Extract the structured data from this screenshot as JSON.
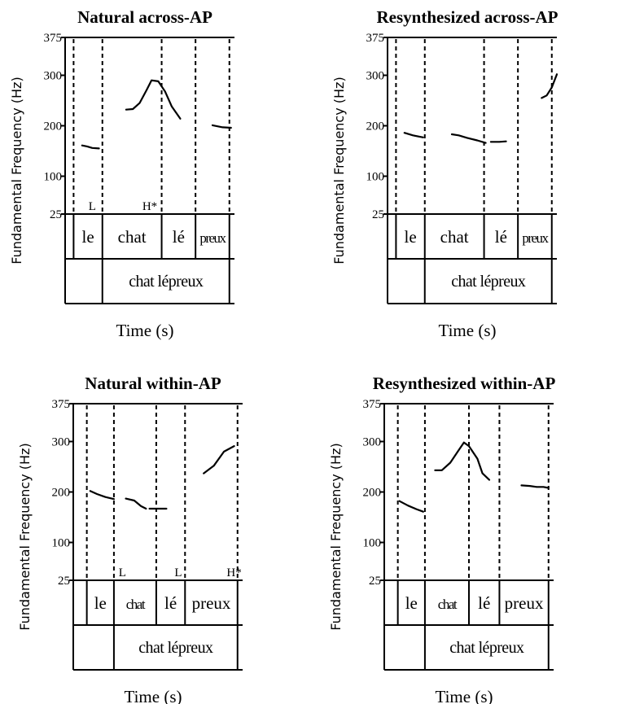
{
  "chart_data": [
    {
      "type": "line",
      "title": "Natural across-AP",
      "ylabel": "Fundamental Frequency (Hz)",
      "xlabel": "Time (s)",
      "yticks": [
        25,
        100,
        200,
        300,
        375
      ],
      "ylim": [
        25,
        375
      ],
      "xlim": [
        0,
        1
      ],
      "tier_bounds": [
        0.05,
        0.22,
        0.57,
        0.77,
        0.97
      ],
      "words": [
        "le",
        "chat",
        "lé",
        "preux"
      ],
      "phrase": "chat lépreux",
      "tones": [
        {
          "label": "L",
          "x": 0.16
        },
        {
          "label": "H*",
          "x": 0.5
        }
      ],
      "series": [
        {
          "values": [
            [
              0.1,
              161
            ],
            [
              0.13,
              159
            ],
            [
              0.16,
              156
            ],
            [
              0.2,
              155
            ]
          ]
        },
        {
          "values": [
            [
              0.36,
              232
            ],
            [
              0.4,
              233
            ],
            [
              0.44,
              245
            ],
            [
              0.48,
              270
            ],
            [
              0.51,
              290
            ],
            [
              0.55,
              288
            ],
            [
              0.59,
              268
            ],
            [
              0.63,
              238
            ],
            [
              0.68,
              214
            ]
          ]
        },
        {
          "values": [
            [
              0.87,
              201
            ],
            [
              0.93,
              197
            ],
            [
              0.98,
              196
            ]
          ]
        }
      ]
    },
    {
      "type": "line",
      "title": "Resynthesized across-AP",
      "ylabel": "Fundamental Frequency (Hz)",
      "xlabel": "Time (s)",
      "yticks": [
        25,
        100,
        200,
        300,
        375
      ],
      "ylim": [
        25,
        375
      ],
      "xlim": [
        0,
        1
      ],
      "tier_bounds": [
        0.05,
        0.22,
        0.57,
        0.77,
        0.97
      ],
      "words": [
        "le",
        "chat",
        "lé",
        "preux"
      ],
      "phrase": "chat lépreux",
      "tones": [],
      "series": [
        {
          "values": [
            [
              0.1,
              186
            ],
            [
              0.15,
              181
            ],
            [
              0.21,
              177
            ]
          ]
        },
        {
          "values": [
            [
              0.38,
              183
            ],
            [
              0.42,
              181
            ],
            [
              0.47,
              176
            ],
            [
              0.53,
              171
            ],
            [
              0.58,
              166
            ]
          ]
        },
        {
          "values": [
            [
              0.61,
              168
            ],
            [
              0.66,
              168
            ],
            [
              0.7,
              169
            ]
          ]
        },
        {
          "values": [
            [
              0.91,
              255
            ],
            [
              0.94,
              260
            ],
            [
              0.97,
              276
            ],
            [
              1.0,
              302
            ]
          ]
        }
      ]
    },
    {
      "type": "line",
      "title": "Natural within-AP",
      "ylabel": "Fundamental Frequency (Hz)",
      "xlabel": "Time (s)",
      "yticks": [
        25,
        100,
        200,
        300,
        375
      ],
      "ylim": [
        25,
        375
      ],
      "xlim": [
        0,
        1
      ],
      "tier_bounds": [
        0.08,
        0.24,
        0.49,
        0.66,
        0.97
      ],
      "words": [
        "le",
        "chat",
        "lé",
        "preux"
      ],
      "phrase": "chat lépreux",
      "tones": [
        {
          "label": "L",
          "x": 0.29
        },
        {
          "label": "L",
          "x": 0.62
        },
        {
          "label": "H*",
          "x": 0.95
        }
      ],
      "series": [
        {
          "values": [
            [
              0.1,
              202
            ],
            [
              0.14,
              196
            ],
            [
              0.19,
              190
            ],
            [
              0.24,
              186
            ]
          ]
        },
        {
          "values": [
            [
              0.31,
              187
            ],
            [
              0.36,
              183
            ],
            [
              0.4,
              172
            ],
            [
              0.43,
              167
            ]
          ]
        },
        {
          "values": [
            [
              0.45,
              167
            ],
            [
              0.5,
              167
            ],
            [
              0.55,
              167
            ]
          ]
        },
        {
          "values": [
            [
              0.77,
              237
            ],
            [
              0.83,
              252
            ],
            [
              0.89,
              280
            ],
            [
              0.95,
              291
            ]
          ]
        }
      ]
    },
    {
      "type": "line",
      "title": "Resynthesized within-AP",
      "ylabel": "Fundamental Frequency (Hz)",
      "xlabel": "Time (s)",
      "yticks": [
        25,
        100,
        200,
        300,
        375
      ],
      "ylim": [
        25,
        375
      ],
      "xlim": [
        0,
        1
      ],
      "tier_bounds": [
        0.08,
        0.24,
        0.5,
        0.68,
        0.97
      ],
      "words": [
        "le",
        "chat",
        "lé",
        "preux"
      ],
      "phrase": "chat lépreux",
      "tones": [],
      "series": [
        {
          "values": [
            [
              0.09,
              182
            ],
            [
              0.14,
              173
            ],
            [
              0.19,
              166
            ],
            [
              0.23,
              161
            ]
          ]
        },
        {
          "values": [
            [
              0.3,
              243
            ],
            [
              0.34,
              243
            ],
            [
              0.39,
              258
            ],
            [
              0.44,
              283
            ],
            [
              0.47,
              298
            ],
            [
              0.5,
              291
            ],
            [
              0.55,
              266
            ],
            [
              0.58,
              237
            ],
            [
              0.62,
              224
            ]
          ]
        },
        {
          "values": [
            [
              0.81,
              213
            ],
            [
              0.86,
              212
            ],
            [
              0.9,
              210
            ],
            [
              0.94,
              210
            ],
            [
              0.97,
              208
            ]
          ]
        }
      ]
    }
  ]
}
